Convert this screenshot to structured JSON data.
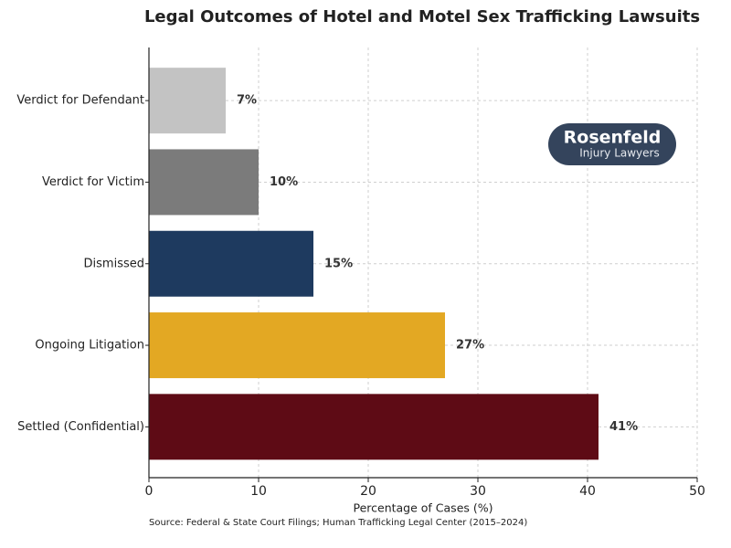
{
  "chart_data": {
    "type": "hbar",
    "title": "Legal Outcomes of Hotel and Motel Sex Trafficking Lawsuits",
    "categories": [
      "Verdict for Defendant",
      "Verdict for Victim",
      "Dismissed",
      "Ongoing Litigation",
      "Settled (Confidential)"
    ],
    "values": [
      7,
      10,
      15,
      27,
      41
    ],
    "value_labels": [
      "7%",
      "10%",
      "15%",
      "27%",
      "41%"
    ],
    "colors": [
      "#c3c3c3",
      "#7b7b7b",
      "#1e3a5f",
      "#e3a823",
      "#5e0b15"
    ],
    "xlabel": "Percentage of Cases (%)",
    "xlim": [
      0,
      50
    ],
    "xticks": [
      0,
      10,
      20,
      30,
      40,
      50
    ],
    "grid": true,
    "source": "Source: Federal & State Court Filings; Human Trafficking Legal Center (2015–2024)",
    "logo": {
      "name": "Rosenfeld",
      "tagline": "Injury Lawyers"
    }
  }
}
